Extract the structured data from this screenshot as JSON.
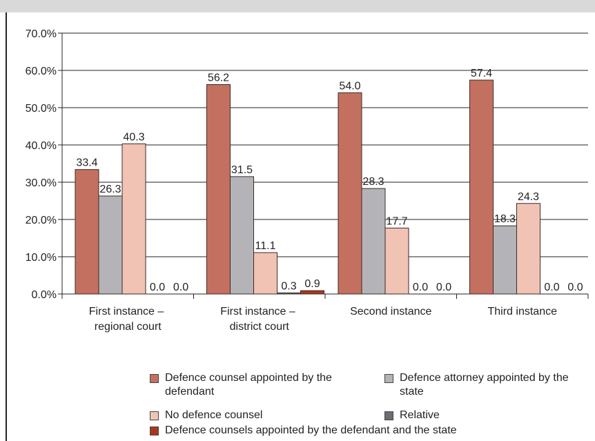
{
  "chart_data": {
    "type": "bar",
    "categories": [
      "First instance – regional court",
      "First instance – district court",
      "Second instance",
      "Third instance"
    ],
    "series": [
      {
        "name": "Defence counsel appointed by the defendant",
        "color": "#c47060",
        "values": [
          33.4,
          56.2,
          54.0,
          57.4
        ],
        "value_labels": [
          "33.4",
          "56.2",
          "54.0",
          "57.4"
        ]
      },
      {
        "name": "Defence attorney appointed by the state",
        "color": "#b4b4b8",
        "values": [
          26.3,
          31.5,
          28.3,
          18.3
        ],
        "value_labels": [
          "26.3",
          "31.5",
          "28.3",
          "18.3"
        ]
      },
      {
        "name": "No defence counsel",
        "color": "#f1c3b4",
        "values": [
          40.3,
          11.1,
          17.7,
          24.3
        ],
        "value_labels": [
          "40.3",
          "11.1",
          "17.7",
          "24.3"
        ]
      },
      {
        "name": "Relative",
        "color": "#6d6d75",
        "values": [
          0,
          0.3,
          0,
          0
        ],
        "value_labels": [
          "0.0",
          "0.3",
          "0.0",
          "0.0"
        ]
      },
      {
        "name": "Defence counsels appointed by the defendant and the state",
        "color": "#a8381c",
        "values": [
          0,
          0.9,
          0,
          0
        ],
        "value_labels": [
          "0.0",
          "0.9",
          "0.0",
          "0.0"
        ]
      }
    ],
    "ylim": [
      0,
      70
    ],
    "yticks": [
      {
        "value": 0,
        "label": "0.0%"
      },
      {
        "value": 10,
        "label": "10.0%"
      },
      {
        "value": 20,
        "label": "20.0%"
      },
      {
        "value": 30,
        "label": "30.0%"
      },
      {
        "value": 40,
        "label": "40.0%"
      },
      {
        "value": 50,
        "label": "50.0%"
      },
      {
        "value": 60,
        "label": "60.0%"
      },
      {
        "value": 70,
        "label": "70.0%"
      }
    ],
    "grid": true
  }
}
